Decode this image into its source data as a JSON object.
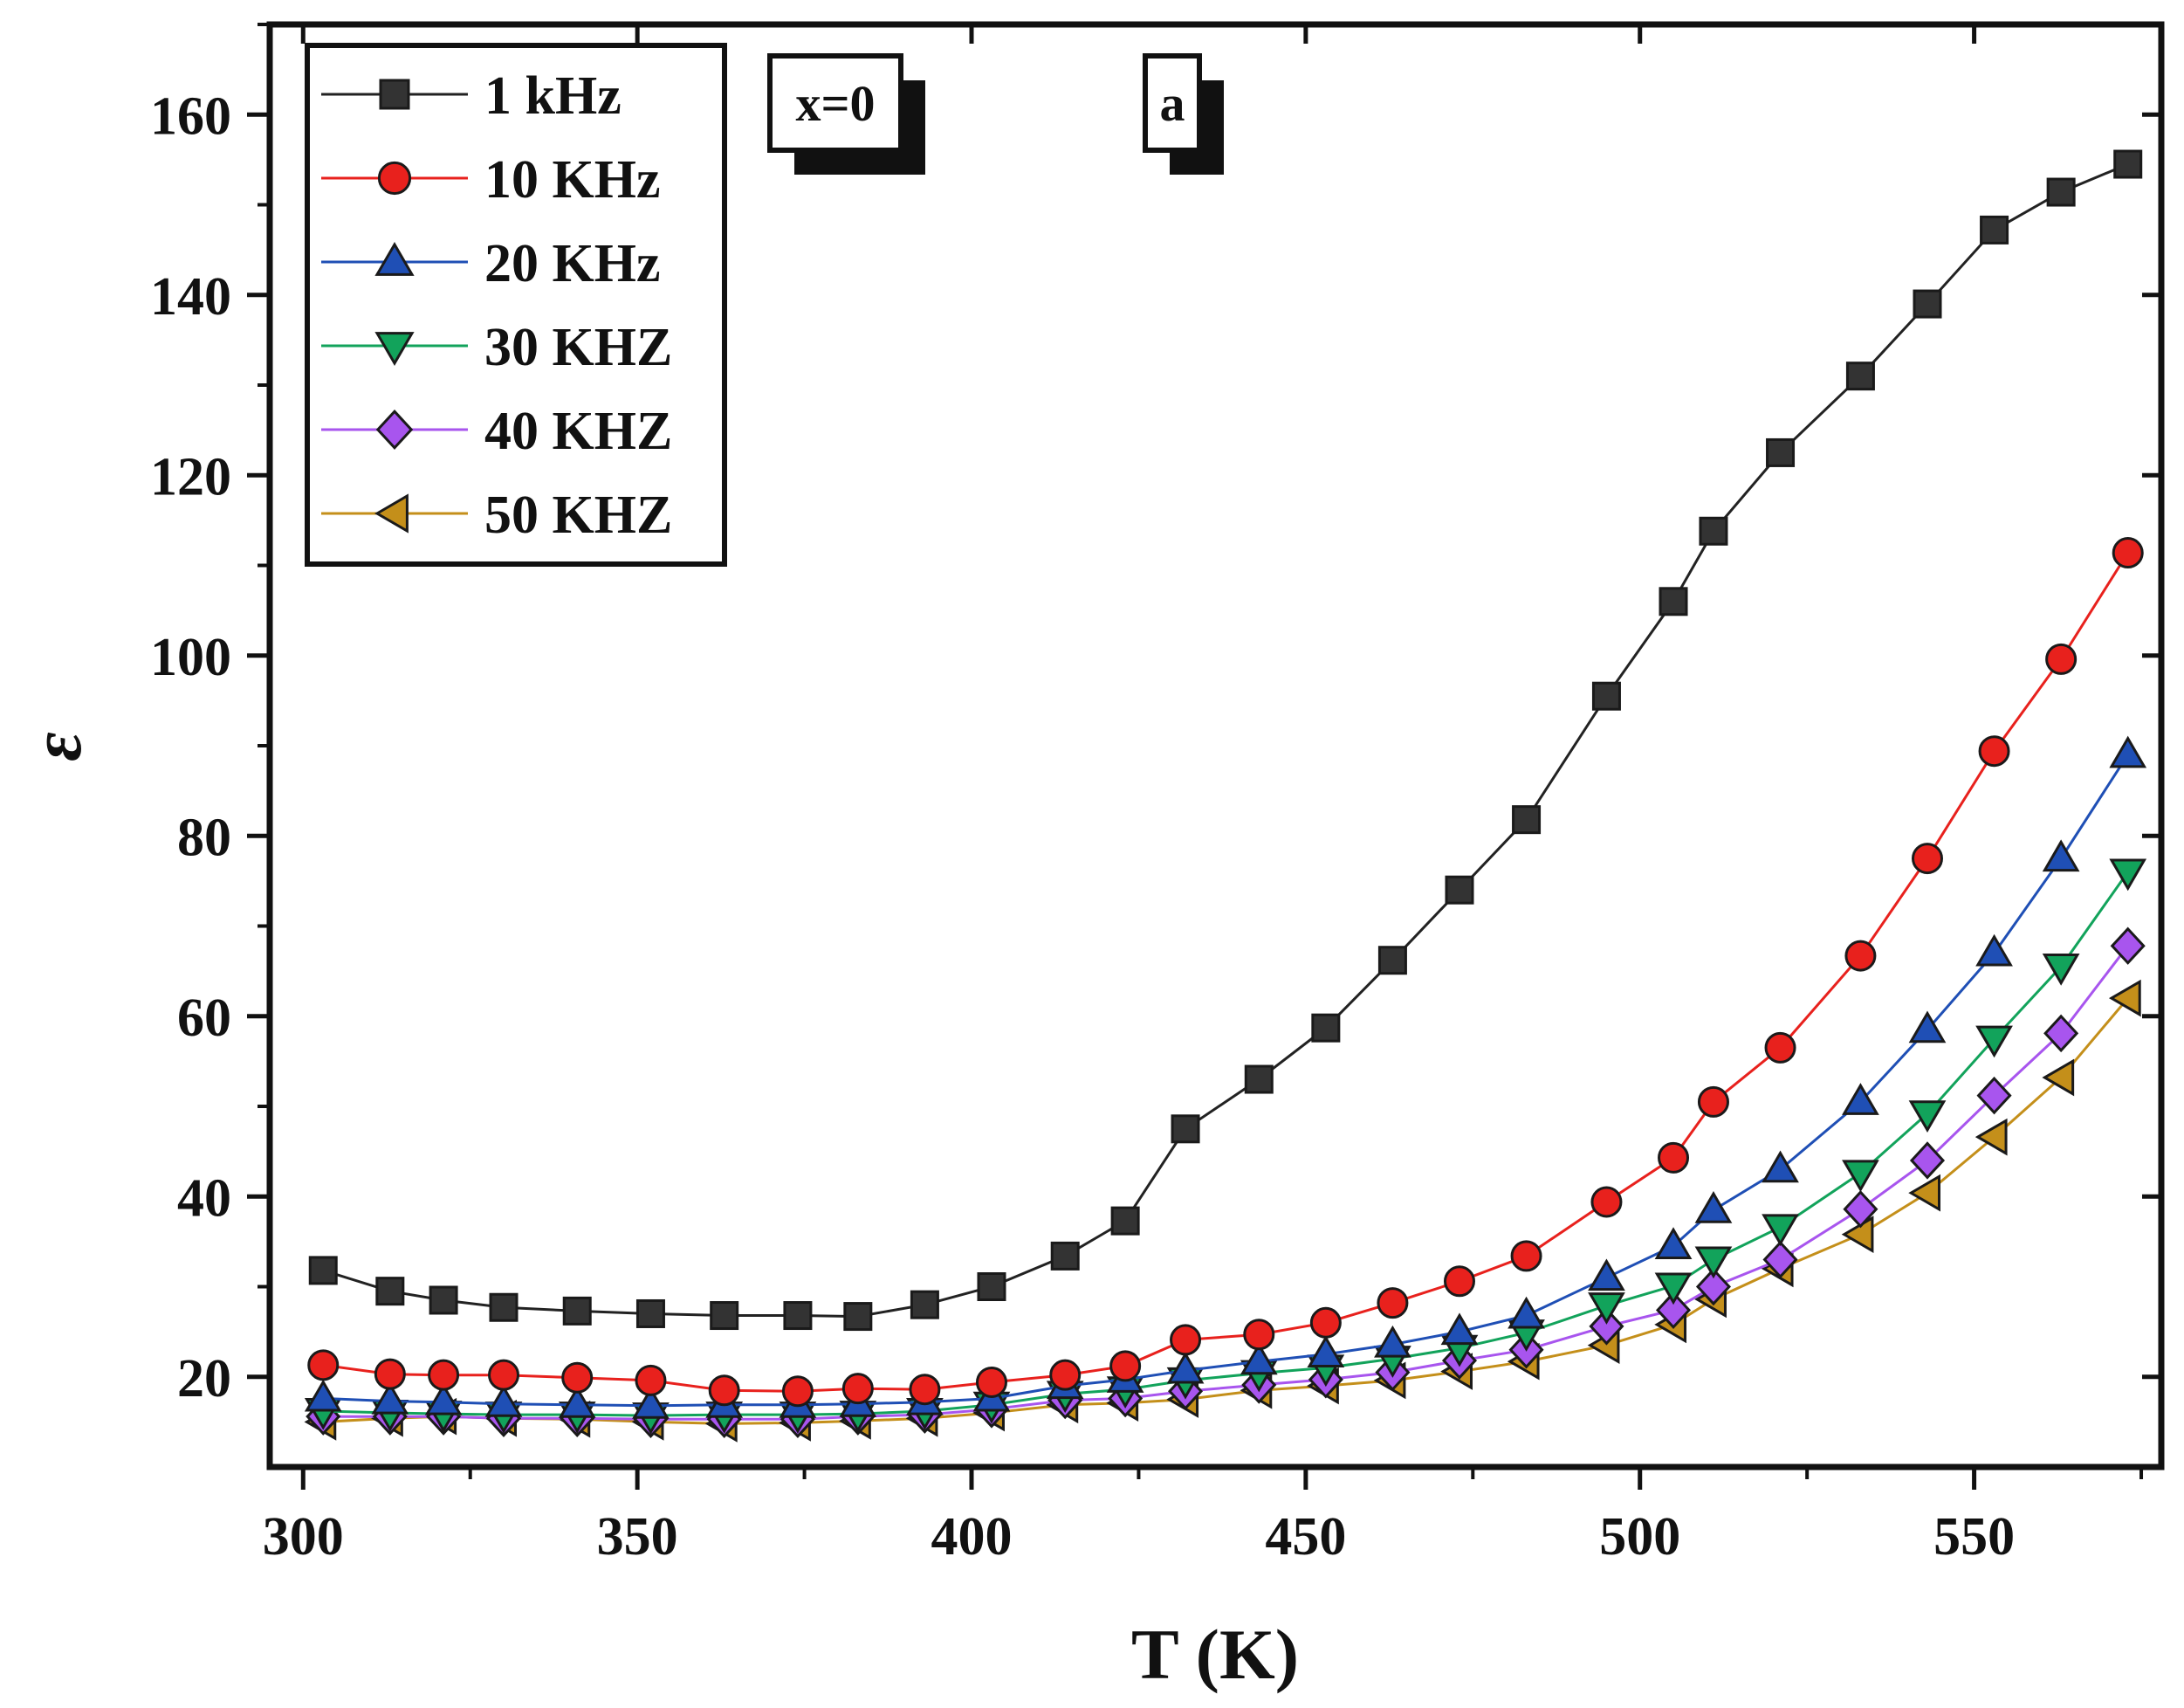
{
  "chart_data": {
    "type": "line",
    "title": "",
    "xlabel": "T (K)",
    "ylabel": "ε",
    "xlim": [
      295,
      578
    ],
    "ylim": [
      10,
      170
    ],
    "xticks": [
      300,
      350,
      400,
      450,
      500,
      550
    ],
    "yticks": [
      20,
      40,
      60,
      80,
      100,
      120,
      140,
      160
    ],
    "x": [
      303,
      313,
      321,
      330,
      341,
      352,
      363,
      374,
      383,
      393,
      403,
      414,
      423,
      432,
      443,
      453,
      463,
      473,
      483,
      495,
      505,
      511,
      521,
      533,
      543,
      553,
      563,
      573
    ],
    "series": [
      {
        "name": "1 kHz",
        "color": "#333333",
        "marker": "square",
        "values": [
          31.8,
          29.5,
          28.5,
          27.7,
          27.3,
          27.0,
          26.8,
          26.8,
          26.7,
          28.0,
          30.0,
          33.4,
          37.3,
          47.5,
          53.0,
          58.7,
          66.2,
          74.0,
          81.8,
          95.5,
          106.0,
          113.8,
          122.5,
          131.0,
          139.0,
          147.2,
          151.4,
          154.5
        ]
      },
      {
        "name": "10 KHz",
        "color": "#e8211d",
        "marker": "circle",
        "values": [
          21.3,
          20.3,
          20.2,
          20.2,
          19.9,
          19.6,
          18.5,
          18.4,
          18.7,
          18.6,
          19.4,
          20.2,
          21.2,
          24.1,
          24.7,
          26.0,
          28.2,
          30.6,
          33.4,
          39.4,
          44.3,
          50.5,
          56.5,
          66.7,
          77.5,
          89.4,
          99.6,
          111.4
        ]
      },
      {
        "name": "20 KHz",
        "color": "#1f4fb5",
        "marker": "triangle-up",
        "values": [
          17.6,
          17.3,
          17.2,
          17.0,
          16.9,
          16.8,
          16.9,
          16.9,
          17.0,
          17.2,
          17.6,
          19.0,
          19.7,
          20.7,
          21.7,
          22.5,
          23.6,
          25.0,
          26.8,
          31.0,
          34.5,
          38.5,
          43.0,
          50.5,
          58.5,
          67.0,
          77.5,
          89.0
        ]
      },
      {
        "name": "30 KHZ",
        "color": "#12a35b",
        "marker": "triangle-down",
        "values": [
          16.2,
          16.0,
          15.9,
          15.8,
          15.8,
          15.7,
          15.8,
          15.8,
          15.9,
          16.2,
          16.9,
          18.1,
          18.6,
          19.6,
          20.4,
          21.0,
          22.0,
          23.2,
          24.9,
          27.9,
          30.1,
          33.0,
          36.6,
          42.6,
          49.2,
          57.5,
          65.5,
          76.0
        ]
      },
      {
        "name": "40 KHZ",
        "color": "#a855ee",
        "marker": "diamond",
        "values": [
          15.6,
          15.6,
          15.6,
          15.4,
          15.4,
          15.3,
          15.3,
          15.3,
          15.6,
          15.8,
          16.4,
          17.4,
          17.6,
          18.4,
          19.1,
          19.7,
          20.5,
          21.8,
          23.0,
          25.6,
          27.4,
          30.0,
          33.0,
          38.6,
          44.0,
          51.2,
          58.1,
          67.8
        ]
      },
      {
        "name": "50 KHZ",
        "color": "#c48f1a",
        "marker": "triangle-left",
        "values": [
          15.0,
          15.4,
          15.6,
          15.4,
          15.3,
          15.0,
          14.8,
          14.9,
          15.1,
          15.4,
          16.0,
          16.9,
          17.1,
          17.5,
          18.5,
          19.0,
          19.6,
          20.6,
          21.7,
          23.5,
          25.8,
          28.6,
          32.0,
          35.8,
          40.4,
          46.6,
          53.2,
          62.0
        ]
      }
    ],
    "legend_position": "top-left",
    "annotations": [
      {
        "name": "composition-label",
        "text": "x=0"
      },
      {
        "name": "panel-label",
        "text": "a"
      }
    ]
  }
}
